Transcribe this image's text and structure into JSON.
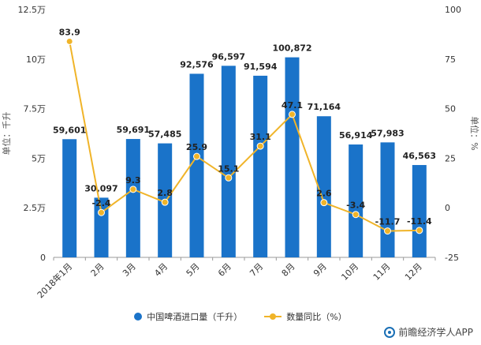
{
  "chart_data": {
    "type": "bar",
    "categories": [
      "2018年1月",
      "2月",
      "3月",
      "4月",
      "5月",
      "6月",
      "7月",
      "8月",
      "9月",
      "10月",
      "11月",
      "12月"
    ],
    "series": [
      {
        "name": "中国啤酒进口量（千升）",
        "type": "bar",
        "axis": "left",
        "values": [
          59601,
          30097,
          59691,
          57485,
          92576,
          96597,
          91594,
          100872,
          71164,
          56914,
          57983,
          46563
        ],
        "labels": [
          "59,601",
          "30,097",
          "59,691",
          "57,485",
          "92,576",
          "96,597",
          "91,594",
          "100,872",
          "71,164",
          "56,914",
          "57,983",
          "46,563"
        ],
        "color": "#1a73c9"
      },
      {
        "name": "数量同比（%）",
        "type": "line",
        "axis": "right",
        "values": [
          83.9,
          -2.4,
          9.3,
          2.8,
          25.9,
          15.1,
          31.1,
          47.1,
          2.6,
          -3.4,
          -11.7,
          -11.4
        ],
        "labels": [
          "83.9",
          "-2.4",
          "9.3",
          "2.8",
          "25.9",
          "15.1",
          "31.1",
          "47.1",
          "2.6",
          "-3.4",
          "-11.7",
          "-11.4"
        ],
        "color": "#f0b429"
      }
    ],
    "y_left": {
      "label": "单位：千升",
      "ylim": [
        0,
        125000
      ],
      "ticks": [
        0,
        25000,
        50000,
        75000,
        100000,
        125000
      ],
      "tick_labels": [
        "0",
        "2.5万",
        "5万",
        "7.5万",
        "10万",
        "12.5万"
      ]
    },
    "y_right": {
      "label": "单位：%",
      "ylim": [
        -25,
        100
      ],
      "ticks": [
        -25,
        0,
        25,
        50,
        75,
        100
      ],
      "tick_labels": [
        "-25",
        "0",
        "25",
        "50",
        "75",
        "100"
      ]
    },
    "grid": false,
    "legend": "bottom-center"
  },
  "legend": {
    "bar": "中国啤酒进口量（千升）",
    "line": "数量同比（%）"
  },
  "brand": "前瞻经济学人APP"
}
